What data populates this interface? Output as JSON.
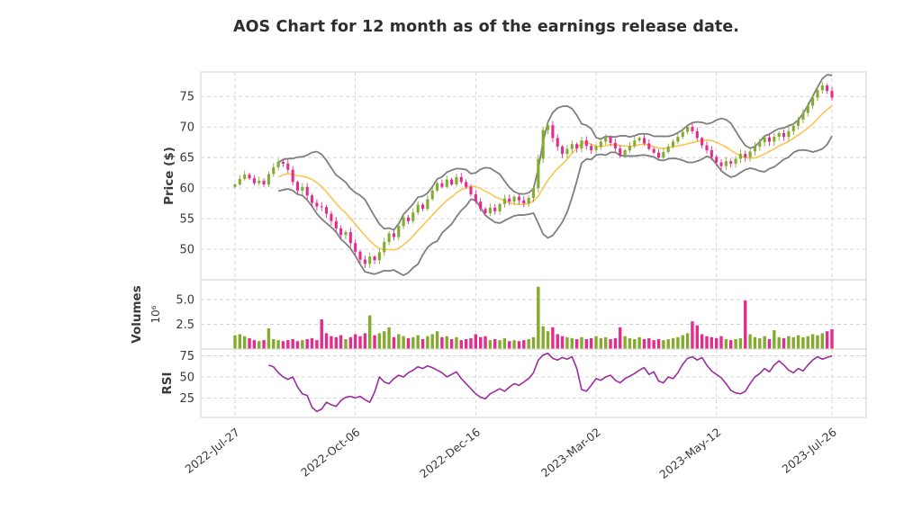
{
  "title": "AOS Chart for 12 month as of the earnings release date.",
  "colors": {
    "up": "#84ab2d",
    "down": "#e32c8d",
    "bollinger": "#7f7f7f",
    "sma": "#fdc451",
    "rsi_line": "#9a2d9e",
    "grid": "#d2d2d2",
    "spine": "#d6d6d6",
    "text": "#3a3a3a",
    "background": "#ffffff"
  },
  "chart_data": {
    "type": "candlestick",
    "symbol": "AOS",
    "period": "12 month",
    "panels": [
      "price",
      "volume",
      "rsi"
    ],
    "legend_position": "none",
    "grid": "dashed",
    "x_ticks": {
      "positions": [
        0,
        25,
        50,
        75,
        100,
        124
      ],
      "labels": [
        "2022-Jul-27",
        "2022-Oct-06",
        "2022-Dec-16",
        "2023-Mar-02",
        "2023-May-12",
        "2023-Jul-26"
      ]
    },
    "price": {
      "ylabel": "Price ($)",
      "ticks": [
        50,
        55,
        60,
        65,
        70,
        75
      ],
      "ylim": [
        45,
        79
      ],
      "close": [
        60.6,
        61.5,
        62.2,
        61.6,
        60.8,
        61.2,
        60.6,
        62.3,
        63.4,
        64.3,
        64.0,
        63.0,
        61.0,
        59.6,
        60.2,
        58.8,
        57.6,
        57.0,
        56.9,
        55.8,
        54.6,
        53.4,
        52.3,
        52.8,
        51.0,
        49.6,
        48.3,
        47.6,
        48.8,
        48.2,
        49.5,
        51.2,
        52.6,
        52.0,
        53.8,
        55.2,
        54.6,
        56.0,
        57.3,
        56.6,
        58.2,
        59.6,
        60.8,
        60.2,
        61.4,
        60.6,
        61.8,
        61.0,
        60.2,
        59.0,
        57.8,
        56.6,
        55.9,
        56.8,
        56.2,
        57.4,
        58.3,
        57.8,
        58.6,
        58.0,
        57.5,
        58.4,
        60.0,
        64.8,
        69.5,
        70.3,
        68.2,
        66.8,
        65.6,
        66.4,
        67.2,
        66.5,
        67.8,
        66.9,
        66.2,
        66.8,
        67.6,
        68.3,
        67.4,
        66.5,
        65.4,
        66.2,
        66.9,
        67.8,
        68.2,
        67.3,
        66.4,
        65.8,
        65.0,
        65.9,
        66.8,
        67.6,
        68.4,
        69.2,
        70.0,
        69.3,
        68.2,
        67.0,
        66.2,
        65.1,
        64.2,
        63.6,
        64.4,
        64.0,
        64.8,
        65.6,
        65.0,
        66.0,
        66.8,
        67.5,
        68.3,
        67.6,
        68.4,
        69.0,
        68.4,
        69.3,
        70.2,
        71.2,
        72.3,
        73.5,
        74.8,
        76.0,
        76.8,
        75.9,
        74.8
      ]
    },
    "volume": {
      "ylabel": "Volumes",
      "exponent_label": "10⁶",
      "ticks": [
        2.5,
        5.0
      ],
      "ylim": [
        0,
        7
      ],
      "values": [
        1.4,
        1.5,
        1.3,
        1.1,
        0.9,
        0.8,
        0.9,
        2.1,
        1.0,
        0.9,
        0.8,
        0.9,
        1.0,
        0.8,
        0.9,
        1.0,
        1.1,
        0.9,
        3.0,
        1.6,
        1.3,
        1.2,
        1.4,
        1.0,
        1.2,
        1.5,
        1.3,
        1.6,
        3.4,
        1.4,
        1.6,
        1.8,
        2.2,
        1.2,
        1.5,
        1.3,
        1.1,
        1.2,
        1.4,
        1.0,
        1.3,
        1.5,
        1.8,
        1.2,
        1.3,
        1.0,
        1.2,
        0.9,
        1.0,
        1.1,
        1.5,
        1.2,
        1.3,
        0.9,
        1.0,
        0.9,
        1.1,
        0.8,
        0.9,
        0.8,
        0.9,
        1.0,
        1.2,
        6.3,
        2.3,
        1.8,
        2.2,
        1.5,
        1.3,
        1.2,
        1.1,
        1.0,
        1.2,
        1.0,
        1.1,
        1.3,
        1.1,
        1.2,
        1.0,
        1.1,
        2.2,
        1.3,
        1.1,
        1.0,
        1.2,
        1.0,
        1.1,
        0.9,
        1.0,
        0.9,
        1.0,
        1.1,
        1.2,
        1.4,
        1.6,
        2.8,
        2.4,
        1.5,
        1.3,
        1.2,
        1.1,
        1.3,
        1.0,
        0.9,
        1.0,
        1.1,
        4.9,
        1.5,
        1.2,
        1.1,
        1.3,
        1.0,
        1.9,
        1.2,
        1.1,
        1.3,
        1.2,
        1.4,
        1.2,
        1.3,
        1.5,
        1.4,
        1.6,
        1.8,
        2.0
      ]
    },
    "rsi": {
      "ylabel": "RSI",
      "ticks": [
        25,
        50,
        75
      ],
      "ylim": [
        2,
        83
      ],
      "start_index": 7,
      "values": [
        64,
        62,
        55,
        50,
        47,
        50,
        38,
        30,
        28,
        14,
        9,
        12,
        20,
        17,
        15,
        22,
        26,
        27,
        25,
        27,
        23,
        20,
        32,
        50,
        44,
        42,
        48,
        52,
        50,
        55,
        58,
        62,
        60,
        63,
        61,
        58,
        55,
        50,
        53,
        56,
        48,
        42,
        36,
        30,
        26,
        24,
        30,
        33,
        36,
        33,
        38,
        42,
        40,
        44,
        48,
        55,
        70,
        76,
        78,
        72,
        70,
        73,
        71,
        74,
        60,
        35,
        33,
        40,
        48,
        46,
        50,
        52,
        46,
        43,
        48,
        51,
        54,
        58,
        61,
        53,
        56,
        45,
        43,
        50,
        48,
        55,
        65,
        72,
        74,
        70,
        73,
        64,
        57,
        53,
        49,
        42,
        34,
        31,
        30,
        33,
        42,
        50,
        54,
        60,
        56,
        64,
        69,
        64,
        58,
        55,
        60,
        57,
        64,
        70,
        74,
        71,
        73,
        75
      ]
    },
    "overlays": {
      "sma_window": 10,
      "bollinger_window": 10,
      "bollinger_sigma": 2
    }
  }
}
